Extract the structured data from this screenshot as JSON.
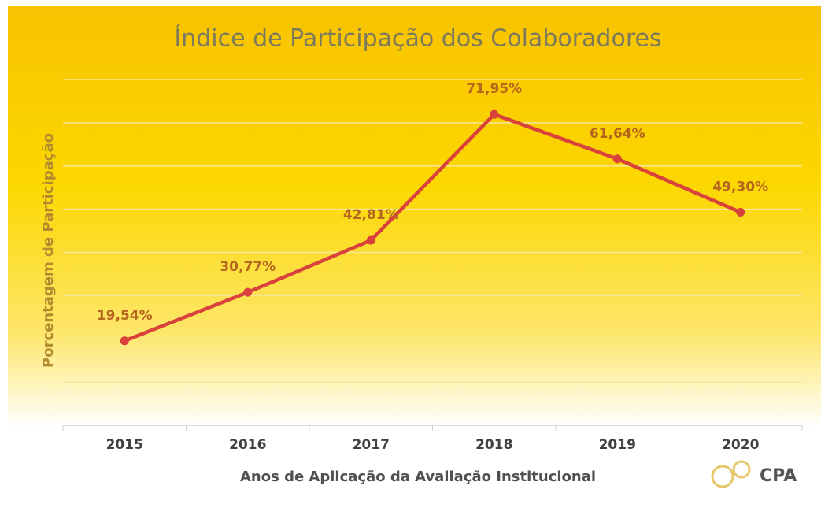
{
  "chart_data": {
    "type": "line",
    "title": "Índice de Participação dos Colaboradores",
    "x_label": "Anos de Aplicação da Avaliação Institucional",
    "y_label": "Porcentagem de Participação",
    "categories": [
      "2015",
      "2016",
      "2017",
      "2018",
      "2019",
      "2020"
    ],
    "series": [
      {
        "name": "Índice de Participação",
        "color": "#d9413b",
        "values": [
          19.54,
          30.77,
          42.81,
          71.95,
          61.64,
          49.3
        ],
        "value_labels": [
          "19,54%",
          "30,77%",
          "42,81%",
          "71,95%",
          "61,64%",
          "49,30%"
        ]
      }
    ],
    "ylim": [
      0,
      80
    ],
    "yticks": [
      0,
      10,
      20,
      30,
      40,
      50,
      60,
      70,
      80
    ],
    "grid": true,
    "logo": "CPA"
  }
}
